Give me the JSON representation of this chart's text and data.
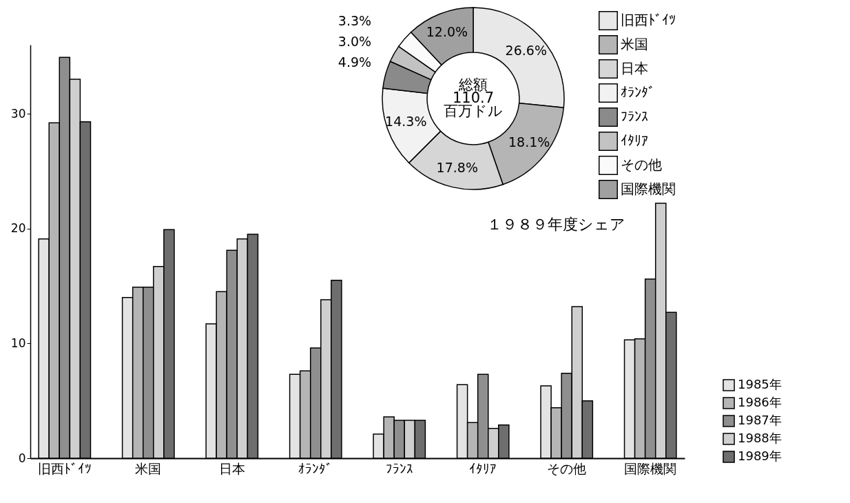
{
  "chart_data": [
    {
      "type": "bar",
      "categories": [
        "旧西ﾄﾞｲﾂ",
        "米国",
        "日本",
        "ｵﾗﾝﾀﾞ",
        "ﾌﾗﾝｽ",
        "ｲﾀﾘｱ",
        "その他",
        "国際機関"
      ],
      "series": [
        {
          "name": "1985年",
          "color": "#e3e3e3",
          "values": [
            19.1,
            14.0,
            11.7,
            7.3,
            2.1,
            6.4,
            6.3,
            10.3
          ]
        },
        {
          "name": "1986年",
          "color": "#b5b5b5",
          "values": [
            29.2,
            14.9,
            14.5,
            7.6,
            3.6,
            3.1,
            4.4,
            10.4
          ]
        },
        {
          "name": "1987年",
          "color": "#8f8f8f",
          "values": [
            34.9,
            14.9,
            18.1,
            9.6,
            3.3,
            7.3,
            7.4,
            15.6
          ]
        },
        {
          "name": "1988年",
          "color": "#cfcfcf",
          "values": [
            33.0,
            16.7,
            19.1,
            13.8,
            3.3,
            2.6,
            13.2,
            22.2
          ]
        },
        {
          "name": "1989年",
          "color": "#6e6e6e",
          "values": [
            29.3,
            19.9,
            19.5,
            15.5,
            3.3,
            2.9,
            5.0,
            12.7
          ]
        }
      ],
      "ylim": [
        0,
        36
      ],
      "yticks": [
        0,
        10,
        20,
        30
      ],
      "grid": false,
      "legend": "bottom right"
    },
    {
      "type": "donut",
      "title": "１９８９年度シェア",
      "categories": [
        "旧西ﾄﾞｲﾂ",
        "米国",
        "日本",
        "ｵﾗﾝﾀﾞ",
        "ﾌﾗﾝｽ",
        "ｲﾀﾘｱ",
        "その他",
        "国際機関"
      ],
      "values": [
        26.6,
        18.1,
        17.8,
        14.3,
        4.9,
        3.0,
        3.3,
        12.0
      ],
      "colors": [
        "#e8e8e8",
        "#b5b5b5",
        "#d6d6d6",
        "#f2f2f2",
        "#8a8a8a",
        "#c2c2c2",
        "#fafafa",
        "#a0a0a0"
      ],
      "value_labels": [
        "26.6%",
        "18.1%",
        "17.8%",
        "14.3%",
        "4.9%",
        "3.0%",
        "3.3%",
        "12.0%"
      ],
      "annotations": [
        "総額",
        "110.7",
        "百万ドル"
      ],
      "legend": "right"
    }
  ]
}
